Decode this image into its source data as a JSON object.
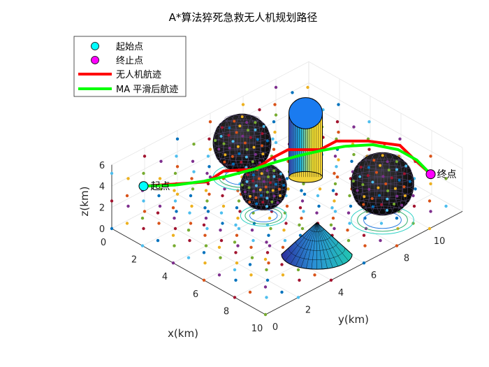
{
  "chart_data": {
    "type": "scatter",
    "title": "A*算法猝死急救无人机规划路径",
    "xlabel": "x(km)",
    "ylabel": "y(km)",
    "zlabel": "z(km)",
    "xlim": [
      0,
      10
    ],
    "ylim": [
      0,
      10
    ],
    "zlim": [
      0,
      6
    ],
    "xticks": [
      "0",
      "2",
      "4",
      "6",
      "8",
      "10"
    ],
    "yticks": [
      "0",
      "2",
      "4",
      "6",
      "8",
      "10"
    ],
    "zticks": [
      "0",
      "2",
      "4",
      "6"
    ],
    "grid": true,
    "legend_position": "top-left",
    "legend": [
      {
        "label": "起始点",
        "marker": "circle",
        "color": "#00ffff"
      },
      {
        "label": "终止点",
        "marker": "circle",
        "color": "#ff00ff"
      },
      {
        "label": "无人机航迹",
        "marker": "line",
        "color": "#ff0000"
      },
      {
        "label": "MA 平滑后航迹",
        "marker": "line",
        "color": "#00ff00"
      }
    ],
    "start_point": {
      "x": 1,
      "y": 1,
      "z": 4,
      "label": "起点"
    },
    "end_point": {
      "x": 9,
      "y": 11,
      "z": 3.5,
      "label": "终点"
    },
    "obstacles": [
      {
        "type": "cylinder",
        "x": 3,
        "y": 9,
        "radius": 1,
        "height": 6
      },
      {
        "type": "sphere",
        "x": 1,
        "y": 7,
        "radius": 2.2
      },
      {
        "type": "sphere",
        "x": 4,
        "y": 5.5,
        "radius": 1.7
      },
      {
        "type": "sphere",
        "x": 8,
        "y": 9,
        "radius": 2.4
      },
      {
        "type": "cone",
        "x": 8,
        "y": 5,
        "radius": 2.3,
        "height": 3
      }
    ],
    "series": [
      {
        "name": "无人机航迹",
        "color": "#ff0000",
        "points": [
          [
            1,
            1,
            4
          ],
          [
            2,
            2,
            4.2
          ],
          [
            3,
            3,
            4.4
          ],
          [
            3,
            4,
            4.6
          ],
          [
            4,
            5,
            4.8
          ],
          [
            4,
            6,
            5
          ],
          [
            4,
            7,
            5
          ],
          [
            5,
            8,
            5
          ],
          [
            5,
            9,
            5
          ],
          [
            6,
            10,
            5
          ],
          [
            7,
            11,
            4.6
          ],
          [
            8,
            11,
            4
          ],
          [
            9,
            11,
            3.5
          ]
        ]
      },
      {
        "name": "MA 平滑后航迹",
        "color": "#00ff00",
        "points": [
          [
            1,
            1,
            4
          ],
          [
            2,
            2,
            4.1
          ],
          [
            2.8,
            3,
            4.3
          ],
          [
            3.4,
            4,
            4.5
          ],
          [
            3.9,
            5,
            4.7
          ],
          [
            4.3,
            6,
            4.9
          ],
          [
            4.7,
            7,
            5
          ],
          [
            5.1,
            8,
            5
          ],
          [
            5.6,
            9,
            5
          ],
          [
            6.3,
            10,
            4.9
          ],
          [
            7.2,
            10.7,
            4.6
          ],
          [
            8.1,
            11,
            4.1
          ],
          [
            9,
            11,
            3.5
          ]
        ]
      }
    ]
  }
}
